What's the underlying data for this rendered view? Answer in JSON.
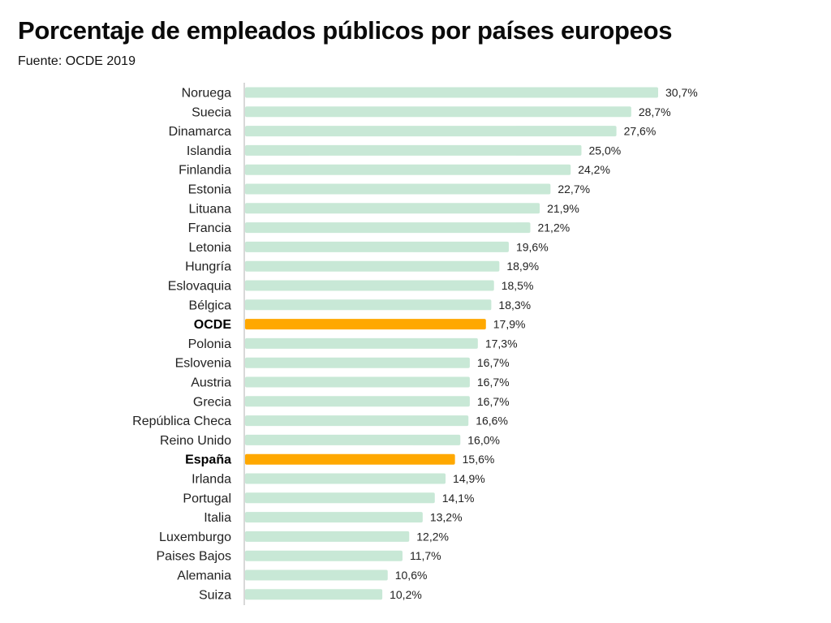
{
  "chart_data": {
    "type": "bar",
    "orientation": "horizontal",
    "title": "Porcentaje de empleados públicos por países europeos",
    "subtitle": "Fuente: OCDE 2019",
    "xlabel": "",
    "ylabel": "",
    "xlim": [
      0,
      30.7
    ],
    "grid": false,
    "colors": {
      "default": "#c8e8d6",
      "highlight": "#ffa800",
      "axis": "#cccccc"
    },
    "categories": [
      "Noruega",
      "Suecia",
      "Dinamarca",
      "Islandia",
      "Finlandia",
      "Estonia",
      "Lituana",
      "Francia",
      "Letonia",
      "Hungría",
      "Eslovaquia",
      "Bélgica",
      "OCDE",
      "Polonia",
      "Eslovenia",
      "Austria",
      "Grecia",
      "República Checa",
      "Reino Unido",
      "España",
      "Irlanda",
      "Portugal",
      "Italia",
      "Luxemburgo",
      "Paises Bajos",
      "Alemania",
      "Suiza"
    ],
    "values": [
      30.7,
      28.7,
      27.6,
      25.0,
      24.2,
      22.7,
      21.9,
      21.2,
      19.6,
      18.9,
      18.5,
      18.3,
      17.9,
      17.3,
      16.7,
      16.7,
      16.7,
      16.6,
      16.0,
      15.6,
      14.9,
      14.1,
      13.2,
      12.2,
      11.7,
      10.6,
      10.2
    ],
    "labels": [
      "30,7%",
      "28,7%",
      "27,6%",
      "25,0%",
      "24,2%",
      "22,7%",
      "21,9%",
      "21,2%",
      "19,6%",
      "18,9%",
      "18,5%",
      "18,3%",
      "17,9%",
      "17,3%",
      "16,7%",
      "16,7%",
      "16,7%",
      "16,6%",
      "16,0%",
      "15,6%",
      "14,9%",
      "14,1%",
      "13,2%",
      "12,2%",
      "11,7%",
      "10,6%",
      "10,2%"
    ],
    "highlighted": [
      "OCDE",
      "España"
    ]
  }
}
